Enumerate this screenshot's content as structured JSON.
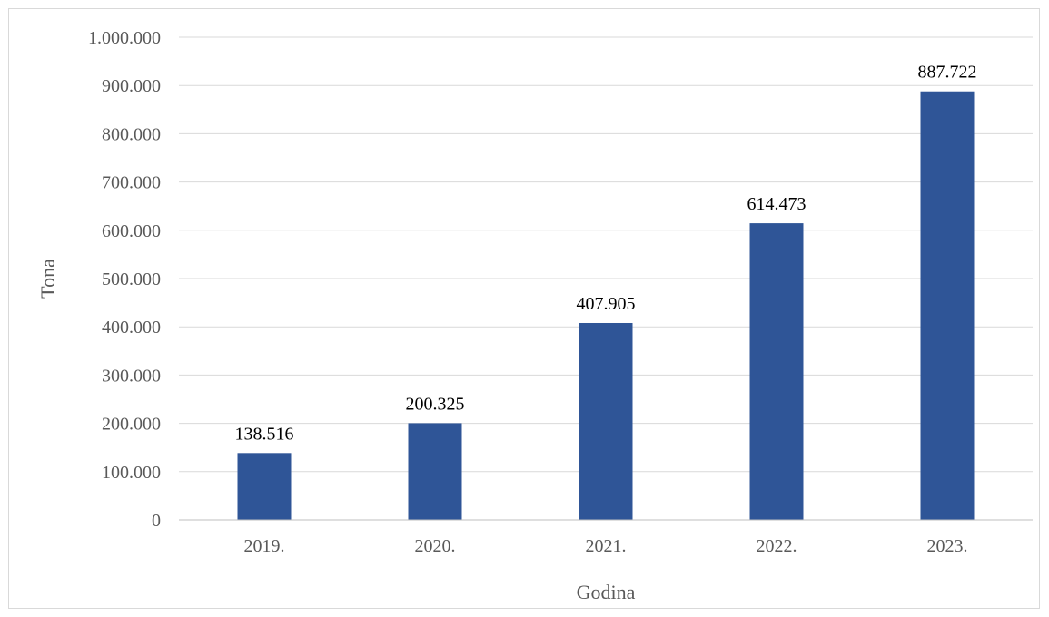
{
  "chart_data": {
    "type": "bar",
    "categories": [
      "2019.",
      "2020.",
      "2021.",
      "2022.",
      "2023."
    ],
    "values": [
      138516,
      200325,
      407905,
      614473,
      887722
    ],
    "value_labels": [
      "138.516",
      "200.325",
      "407.905",
      "614.473",
      "887.722"
    ],
    "xlabel": "Godina",
    "ylabel": "Tona",
    "ylim": [
      0,
      1000000
    ],
    "yticks": [
      0,
      100000,
      200000,
      300000,
      400000,
      500000,
      600000,
      700000,
      800000,
      900000,
      1000000
    ],
    "ytick_labels": [
      "0",
      "100.000",
      "200.000",
      "300.000",
      "400.000",
      "500.000",
      "600.000",
      "700.000",
      "800.000",
      "900.000",
      "1.000.000"
    ],
    "grid": true,
    "legend": "none",
    "colors": {
      "bar": "#2F5597",
      "grid": "#d9d9d9",
      "axis": "#bfbfbf"
    }
  }
}
